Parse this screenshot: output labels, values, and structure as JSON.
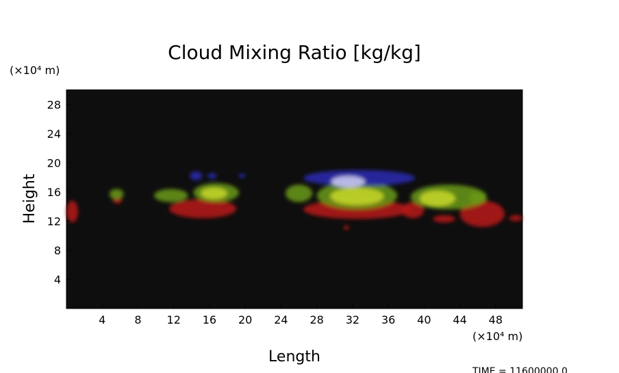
{
  "chart_data": {
    "type": "heatmap",
    "title": "Cloud Mixing Ratio [kg/kg]",
    "xlabel": "Length",
    "ylabel": "Height",
    "x_unit": "(×10⁴ m)",
    "y_unit": "(×10⁴ m)",
    "xlim": [
      0,
      51
    ],
    "ylim": [
      0,
      30
    ],
    "x_ticks": [
      4,
      8,
      12,
      16,
      20,
      24,
      28,
      32,
      36,
      40,
      44,
      48
    ],
    "y_ticks": [
      4,
      8,
      12,
      16,
      20,
      24,
      28
    ],
    "background_color": "#0e0e0e",
    "cloud_colors": {
      "red": "#b81515",
      "green": "#6a9a14",
      "yellow": "#c8d82a",
      "blue": "#2a2ab4",
      "white": "#c8c8f0"
    },
    "cloud_regions": [
      {
        "color": "red",
        "x_start": 0.0,
        "x_end": 1.3,
        "y_bottom": 11.8,
        "y_top": 14.8
      },
      {
        "color": "red",
        "x_start": 5.2,
        "x_end": 6.2,
        "y_bottom": 14.4,
        "y_top": 15.3
      },
      {
        "color": "green",
        "x_start": 4.8,
        "x_end": 6.4,
        "y_bottom": 15.0,
        "y_top": 16.4
      },
      {
        "color": "red",
        "x_start": 11.5,
        "x_end": 19.0,
        "y_bottom": 12.4,
        "y_top": 15.0
      },
      {
        "color": "green",
        "x_start": 9.8,
        "x_end": 13.6,
        "y_bottom": 14.6,
        "y_top": 16.4
      },
      {
        "color": "green",
        "x_start": 14.2,
        "x_end": 19.3,
        "y_bottom": 14.6,
        "y_top": 17.2
      },
      {
        "color": "yellow",
        "x_start": 15.0,
        "x_end": 18.0,
        "y_bottom": 15.0,
        "y_top": 16.6
      },
      {
        "color": "blue",
        "x_start": 13.8,
        "x_end": 15.2,
        "y_bottom": 17.6,
        "y_top": 18.8
      },
      {
        "color": "blue",
        "x_start": 15.8,
        "x_end": 16.8,
        "y_bottom": 17.8,
        "y_top": 18.6
      },
      {
        "color": "blue",
        "x_start": 19.3,
        "x_end": 20.0,
        "y_bottom": 17.9,
        "y_top": 18.5
      },
      {
        "color": "green",
        "x_start": 24.5,
        "x_end": 27.5,
        "y_bottom": 14.6,
        "y_top": 17.0
      },
      {
        "color": "red",
        "x_start": 26.5,
        "x_end": 38.5,
        "y_bottom": 12.3,
        "y_top": 14.9
      },
      {
        "color": "green",
        "x_start": 28.0,
        "x_end": 37.0,
        "y_bottom": 13.6,
        "y_top": 17.4
      },
      {
        "color": "yellow",
        "x_start": 29.5,
        "x_end": 35.5,
        "y_bottom": 14.2,
        "y_top": 16.6
      },
      {
        "color": "blue",
        "x_start": 26.5,
        "x_end": 39.0,
        "y_bottom": 16.8,
        "y_top": 19.0
      },
      {
        "color": "white",
        "x_start": 29.6,
        "x_end": 33.4,
        "y_bottom": 16.6,
        "y_top": 18.2
      },
      {
        "color": "red",
        "x_start": 31.0,
        "x_end": 31.6,
        "y_bottom": 10.8,
        "y_top": 11.4
      },
      {
        "color": "red",
        "x_start": 37.5,
        "x_end": 40.0,
        "y_bottom": 12.4,
        "y_top": 14.6
      },
      {
        "color": "green",
        "x_start": 38.5,
        "x_end": 47.0,
        "y_bottom": 13.6,
        "y_top": 17.0
      },
      {
        "color": "yellow",
        "x_start": 39.5,
        "x_end": 43.5,
        "y_bottom": 14.0,
        "y_top": 16.2
      },
      {
        "color": "red",
        "x_start": 41.0,
        "x_end": 43.5,
        "y_bottom": 11.8,
        "y_top": 12.8
      },
      {
        "color": "red",
        "x_start": 44.0,
        "x_end": 49.0,
        "y_bottom": 11.2,
        "y_top": 14.8
      },
      {
        "color": "green",
        "x_start": 45.0,
        "x_end": 47.0,
        "y_bottom": 14.4,
        "y_top": 16.0
      },
      {
        "color": "red",
        "x_start": 49.5,
        "x_end": 51.0,
        "y_bottom": 12.0,
        "y_top": 12.8
      }
    ]
  },
  "time_label": "TIME  =  11600000.0"
}
